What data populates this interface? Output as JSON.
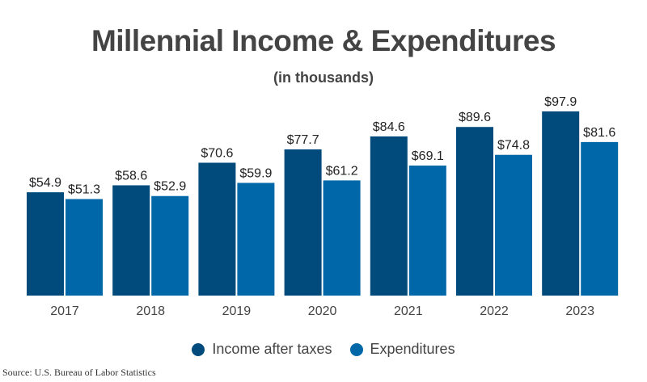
{
  "chart_data": {
    "type": "bar",
    "title": "Millennial Income & Expenditures",
    "subtitle": "(in thousands)",
    "categories": [
      "2017",
      "2018",
      "2019",
      "2020",
      "2021",
      "2022",
      "2023"
    ],
    "series": [
      {
        "name": "Income after taxes",
        "color": "#004a7c",
        "values": [
          54.9,
          58.6,
          70.6,
          77.7,
          84.6,
          89.6,
          97.9
        ],
        "labels": [
          "$54.9",
          "$58.6",
          "$70.6",
          "$77.7",
          "$84.6",
          "$89.6",
          "$97.9"
        ]
      },
      {
        "name": "Expenditures",
        "color": "#0067a8",
        "values": [
          51.3,
          52.9,
          59.9,
          61.2,
          69.1,
          74.8,
          81.6
        ],
        "labels": [
          "$51.3",
          "$52.9",
          "$59.9",
          "$61.2",
          "$69.1",
          "$74.8",
          "$81.6"
        ]
      }
    ],
    "ylim": [
      0,
      100
    ],
    "grid": false,
    "legend": "bottom"
  },
  "source": "Source: U.S. Bureau of Labor Statistics"
}
